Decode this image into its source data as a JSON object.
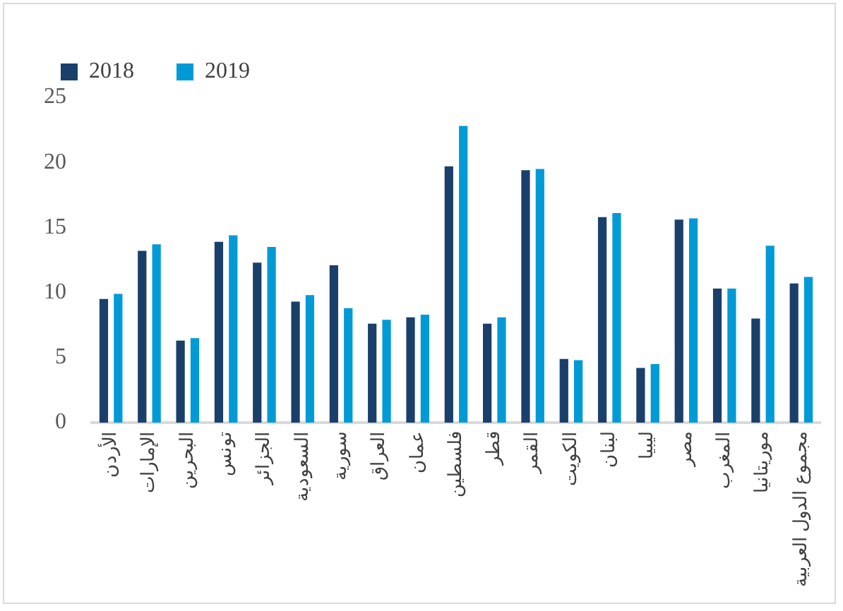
{
  "chart_data": {
    "type": "bar",
    "categories": [
      "الأردن",
      "الإمارات",
      "البحرين",
      "تونس",
      "الجزائر",
      "السعودية",
      "سورية",
      "العراق",
      "عمان",
      "فلسطين",
      "قطر",
      "القمر",
      "الكويت",
      "لبنان",
      "ليبيا",
      "مصر",
      "المغرب",
      "موريتانيا",
      "مجموع الدول العربية"
    ],
    "series": [
      {
        "name": "2018",
        "color": "#1a3f6b",
        "values": [
          9.5,
          13.2,
          6.3,
          13.9,
          12.3,
          9.3,
          12.1,
          7.6,
          8.1,
          19.7,
          7.6,
          19.4,
          4.9,
          15.8,
          4.2,
          15.6,
          10.3,
          8.0,
          10.7
        ]
      },
      {
        "name": "2019",
        "color": "#009ad6",
        "values": [
          9.9,
          13.7,
          6.5,
          14.4,
          13.5,
          9.8,
          8.8,
          7.9,
          8.3,
          22.8,
          8.1,
          19.5,
          4.8,
          16.1,
          4.5,
          15.7,
          10.3,
          13.6,
          11.2
        ]
      }
    ],
    "ylim": [
      0,
      25
    ],
    "yticks": [
      0,
      5,
      10,
      15,
      20,
      25
    ],
    "grid": false,
    "legend": "top left"
  }
}
